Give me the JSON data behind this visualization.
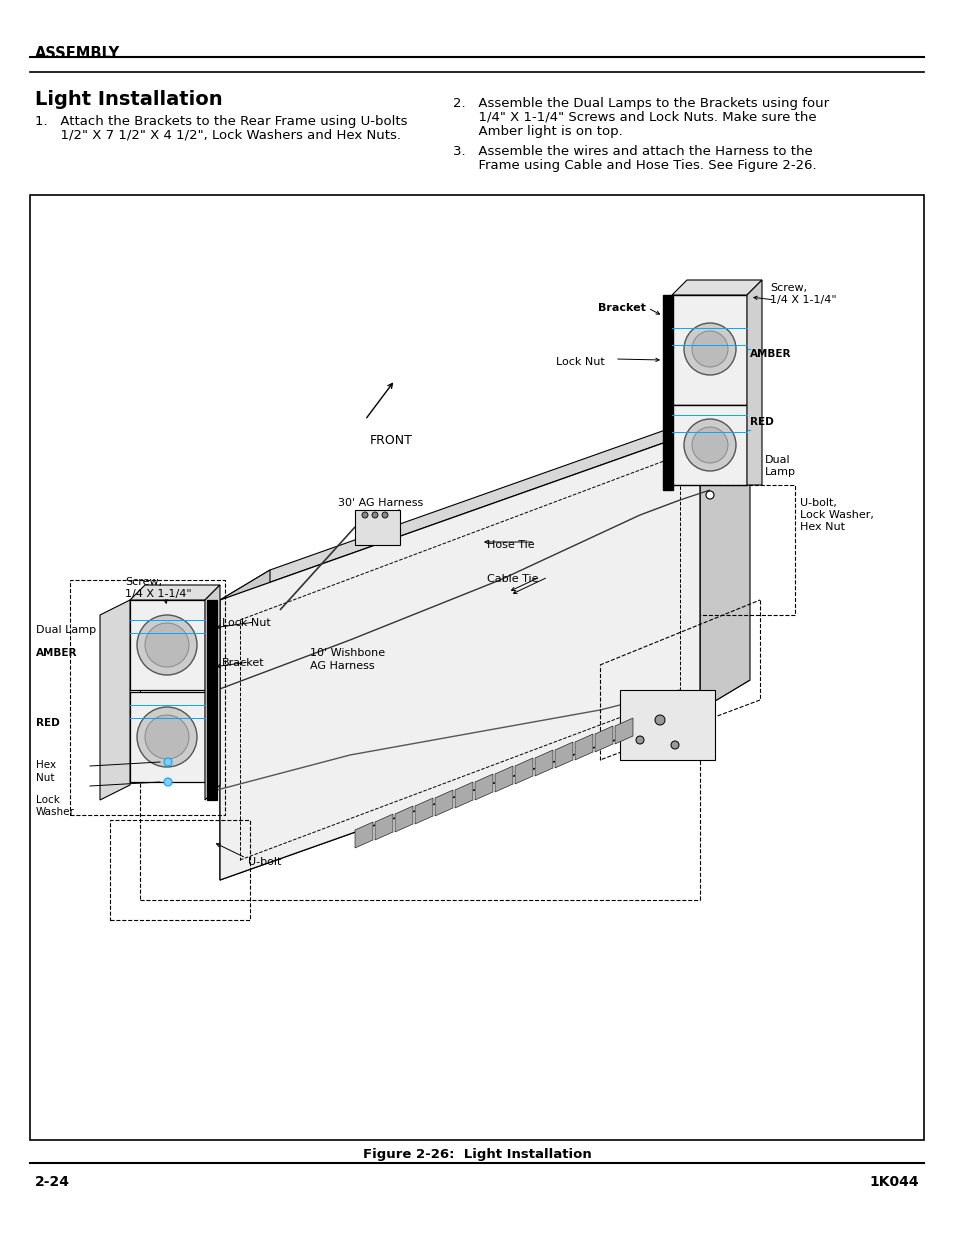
{
  "page_bg": "#ffffff",
  "header_text": "ASSEMBLY",
  "section_title": "Light Installation",
  "body_line1a": "1.   Attach the Brackets to the Rear Frame using U-bolts",
  "body_line1b": "      1/2\" X 7 1/2\" X 4 1/2\", Lock Washers and Hex Nuts.",
  "body_line2a": "2.   Assemble the Dual Lamps to the Brackets using four",
  "body_line2b": "      1/4\" X 1-1/4\" Screws and Lock Nuts. Make sure the",
  "body_line2c": "      Amber light is on top.",
  "body_line3a": "3.   Assemble the wires and attach the Harness to the",
  "body_line3b": "      Frame using Cable and Hose Ties. See Figure 2-26.",
  "figure_caption": "Figure 2-26:  Light Installation",
  "footer_left": "2-24",
  "footer_right": "1K044"
}
